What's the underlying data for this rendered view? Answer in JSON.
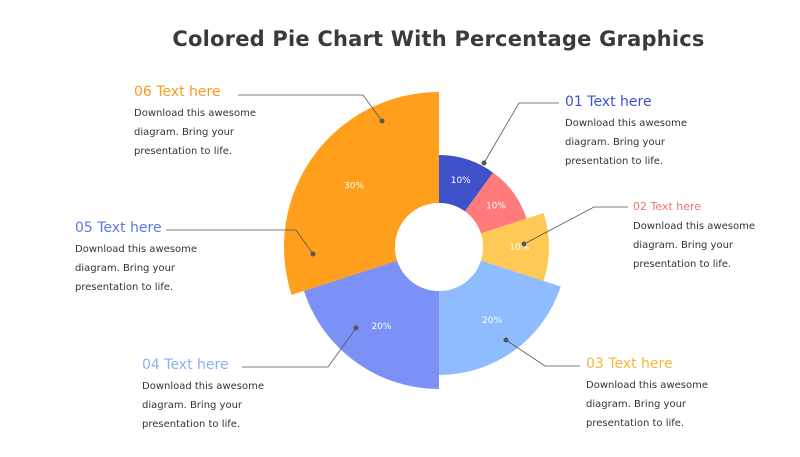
{
  "title": "Colored Pie Chart With Percentage Graphics",
  "chart_data": {
    "type": "pie",
    "categories": [
      "01",
      "02",
      "03",
      "04",
      "05",
      "06"
    ],
    "values": [
      10,
      10,
      10,
      20,
      20,
      30
    ],
    "labels": [
      "10%",
      "10%",
      "10%",
      "20%",
      "20%",
      "30%"
    ],
    "colors": [
      "#3f51c8",
      "#ff7a7a",
      "#ffc955",
      "#8ebcff",
      "#7b91f5",
      "#ff9f1c"
    ]
  },
  "items": [
    {
      "id": "01",
      "title": "01 Text here",
      "desc": "Download this awesome diagram. Bring your presentation to life.",
      "color": "#3f51c8"
    },
    {
      "id": "02",
      "title": "02 Text here",
      "desc": "Download this awesome diagram. Bring your presentation to life.",
      "color": "#f07070"
    },
    {
      "id": "03",
      "title": "03 Text here",
      "desc": "Download this awesome diagram. Bring your presentation to life.",
      "color": "#f5b73b"
    },
    {
      "id": "04",
      "title": "04 Text here",
      "desc": "Download this awesome diagram. Bring your presentation to life.",
      "color": "#8ab0f5"
    },
    {
      "id": "05",
      "title": "05 Text here",
      "desc": "Download this awesome diagram. Bring your presentation to life.",
      "color": "#5b78e8"
    },
    {
      "id": "06",
      "title": "06 Text here",
      "desc": "Download this awesome diagram. Bring your presentation to life.",
      "color": "#f59d1c"
    }
  ]
}
